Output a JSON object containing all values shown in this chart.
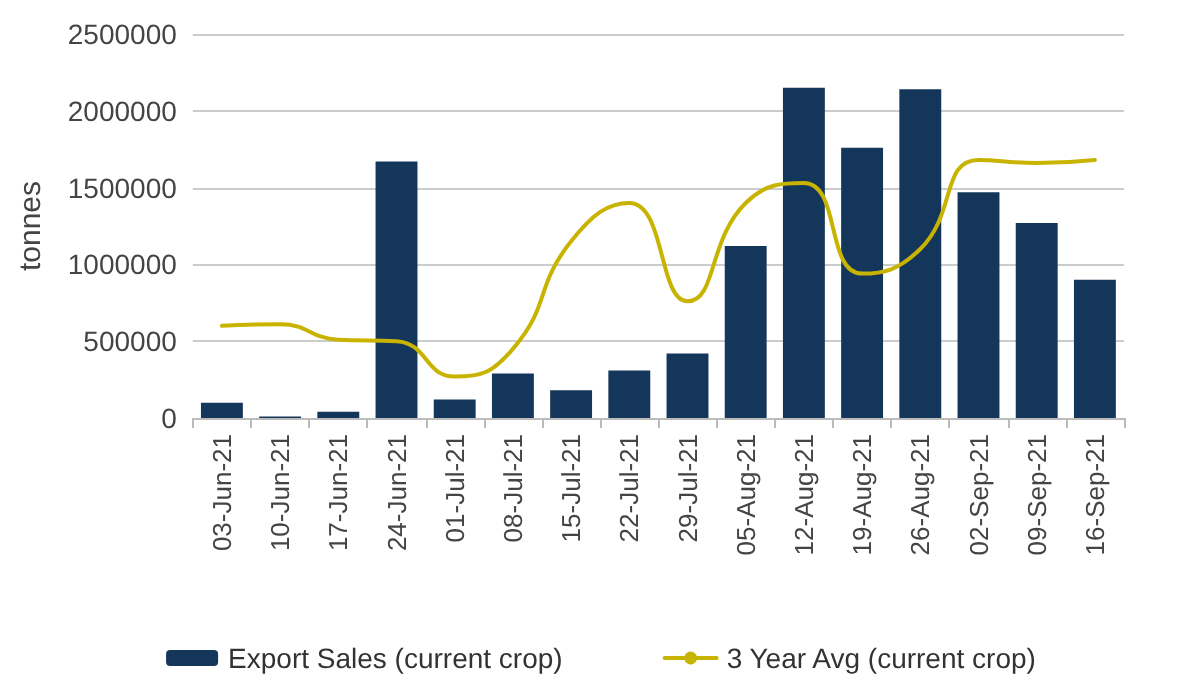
{
  "chart_data": {
    "type": "bar",
    "ylabel": "tonnes",
    "categories": [
      "03-Jun-21",
      "10-Jun-21",
      "17-Jun-21",
      "24-Jun-21",
      "01-Jul-21",
      "08-Jul-21",
      "15-Jul-21",
      "22-Jul-21",
      "29-Jul-21",
      "05-Aug-21",
      "12-Aug-21",
      "19-Aug-21",
      "26-Aug-21",
      "02-Sep-21",
      "09-Sep-21",
      "16-Sep-21"
    ],
    "series": [
      {
        "name": "Export Sales (current crop)",
        "color": "#14365a",
        "values": [
          100000,
          10000,
          40000,
          1670000,
          120000,
          290000,
          180000,
          310000,
          420000,
          1120000,
          2150000,
          1760000,
          2140000,
          1470000,
          1270000,
          900000
        ]
      },
      {
        "name": "3 Year Avg (current crop)",
        "type": "line",
        "color": "#c8b400",
        "values": [
          600000,
          610000,
          510000,
          500000,
          270000,
          450000,
          1150000,
          1400000,
          760000,
          1400000,
          1530000,
          940000,
          1100000,
          1680000,
          1660000,
          1680000
        ]
      }
    ],
    "ylim": [
      0,
      2500000
    ],
    "yticks": [
      0,
      500000,
      1000000,
      1500000,
      2000000,
      2500000
    ],
    "grid": "y",
    "legend": "bottom",
    "marker": "none",
    "line_style": "solid"
  }
}
